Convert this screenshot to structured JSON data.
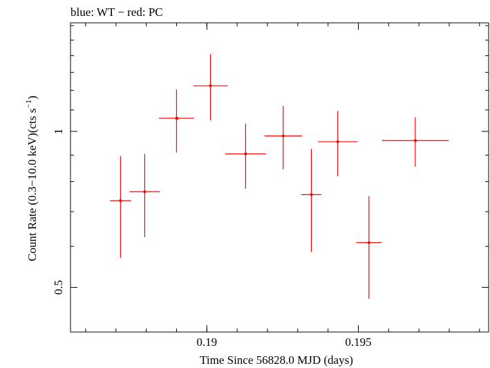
{
  "chart_data": {
    "type": "scatter",
    "title": "blue: WT − red: PC",
    "xlabel": "Time Since 56828.0 MJD (days)",
    "ylabel_main": "Count Rate (0.3−10.0 keV)(cts s",
    "ylabel_sup": "−1",
    "ylabel_close": ")",
    "x_scale": "linear",
    "y_scale": "log",
    "xlim": [
      0.1855,
      0.1993
    ],
    "ylim": [
      0.41,
      1.62
    ],
    "x_major_ticks": [
      {
        "value": 0.19,
        "label": "0.19"
      },
      {
        "value": 0.195,
        "label": "0.195"
      }
    ],
    "x_minor_step": 0.001,
    "y_major_ticks": [
      {
        "value": 0.5,
        "label": "0.5"
      },
      {
        "value": 1,
        "label": "1"
      }
    ],
    "y_minor_ticks": [
      0.6,
      0.7,
      0.8,
      0.9,
      1.1,
      1.2,
      1.3,
      1.4,
      1.5,
      1.6
    ],
    "series": [
      {
        "color": "#ff0000",
        "points": [
          {
            "x": 0.18715,
            "xerr": 0.00035,
            "y": 0.735,
            "ylo": 0.57,
            "yhi": 0.895
          },
          {
            "x": 0.18795,
            "xerr": 0.0005,
            "y": 0.765,
            "ylo": 0.625,
            "yhi": 0.905
          },
          {
            "x": 0.189,
            "xerr": 0.00058,
            "y": 1.06,
            "ylo": 0.91,
            "yhi": 1.205
          },
          {
            "x": 0.18902,
            "xerr": 0.0,
            "y": 1.06,
            "ylo": 1.06,
            "yhi": 1.06
          },
          {
            "x": 0.19012,
            "xerr": 0.00057,
            "y": 1.225,
            "ylo": 1.05,
            "yhi": 1.41
          },
          {
            "x": 0.19128,
            "xerr": 0.00067,
            "y": 0.905,
            "ylo": 0.775,
            "yhi": 1.035
          },
          {
            "x": 0.19252,
            "xerr": 0.00062,
            "y": 0.98,
            "ylo": 0.845,
            "yhi": 1.12
          },
          {
            "x": 0.19345,
            "xerr": 0.00033,
            "y": 0.755,
            "ylo": 0.585,
            "yhi": 0.925
          },
          {
            "x": 0.19432,
            "xerr": 0.00065,
            "y": 0.955,
            "ylo": 0.82,
            "yhi": 1.095
          },
          {
            "x": 0.19535,
            "xerr": 0.00042,
            "y": 0.61,
            "ylo": 0.475,
            "yhi": 0.75
          },
          {
            "x": 0.19688,
            "xerr": 0.0011,
            "y": 0.96,
            "ylo": 0.855,
            "yhi": 1.065
          }
        ]
      }
    ]
  }
}
